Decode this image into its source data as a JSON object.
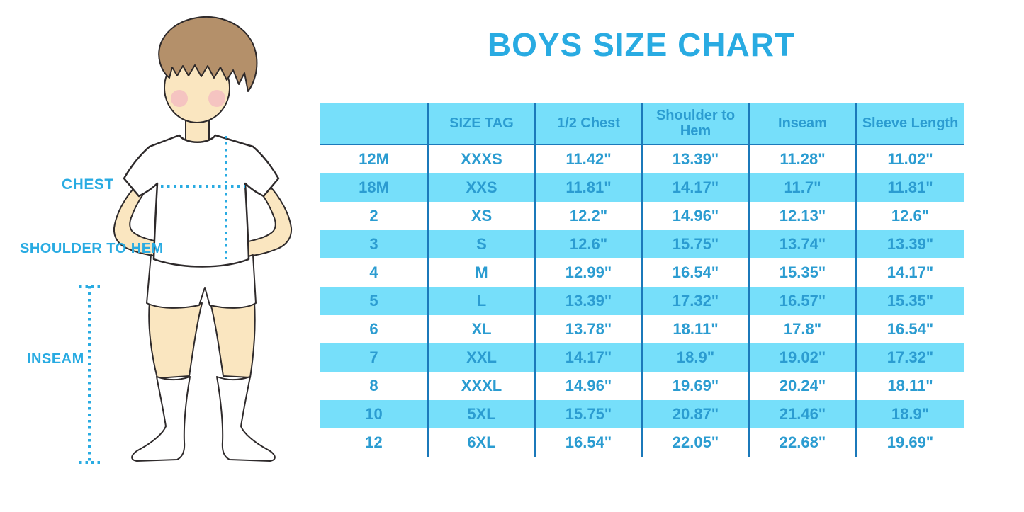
{
  "title": "BOYS SIZE CHART",
  "figure": {
    "labels": {
      "chest": "CHEST",
      "shoulder_to_hem": "SHOULDER TO HEM",
      "inseam": "INSEAM"
    }
  },
  "chart_data": {
    "type": "table",
    "title": "BOYS SIZE CHART",
    "columns": [
      "",
      "SIZE TAG",
      "1/2 Chest",
      "Shoulder to Hem",
      "Inseam",
      "Sleeve Length"
    ],
    "rows": [
      [
        "12M",
        "XXXS",
        "11.42\"",
        "13.39\"",
        "11.28\"",
        "11.02\""
      ],
      [
        "18M",
        "XXS",
        "11.81\"",
        "14.17\"",
        "11.7\"",
        "11.81\""
      ],
      [
        "2",
        "XS",
        "12.2\"",
        "14.96\"",
        "12.13\"",
        "12.6\""
      ],
      [
        "3",
        "S",
        "12.6\"",
        "15.75\"",
        "13.74\"",
        "13.39\""
      ],
      [
        "4",
        "M",
        "12.99\"",
        "16.54\"",
        "15.35\"",
        "14.17\""
      ],
      [
        "5",
        "L",
        "13.39\"",
        "17.32\"",
        "16.57\"",
        "15.35\""
      ],
      [
        "6",
        "XL",
        "13.78\"",
        "18.11\"",
        "17.8\"",
        "16.54\""
      ],
      [
        "7",
        "XXL",
        "14.17\"",
        "18.9\"",
        "19.02\"",
        "17.32\""
      ],
      [
        "8",
        "XXXL",
        "14.96\"",
        "19.69\"",
        "20.24\"",
        "18.11\""
      ],
      [
        "10",
        "5XL",
        "15.75\"",
        "20.87\"",
        "21.46\"",
        "18.9\""
      ],
      [
        "12",
        "6XL",
        "16.54\"",
        "22.05\"",
        "22.68\"",
        "19.69\""
      ]
    ]
  },
  "colors": {
    "accent": "#29ABE2",
    "table_text": "#2B9CD1",
    "row_blue": "#76DFFA",
    "divider": "#1B79BA",
    "skin": "#FAE6C0",
    "hair": "#B4906A",
    "blush": "#F2AEC2",
    "outline": "#2E2A2B"
  }
}
